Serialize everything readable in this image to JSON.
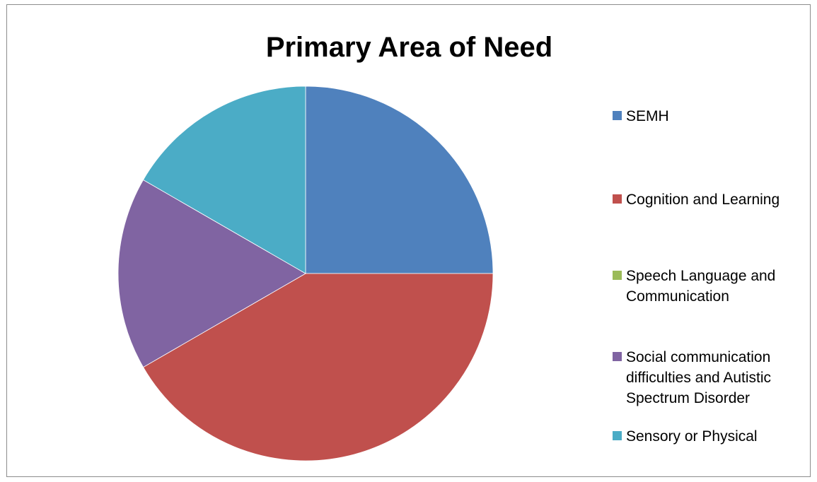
{
  "chart_data": {
    "type": "pie",
    "title": "Primary Area of Need",
    "categories": [
      "SEMH",
      "Cognition and Learning",
      "Speech Language and Communication",
      "Social communication difficulties and Autistic Spectrum Disorder",
      "Sensory or Physical"
    ],
    "values": [
      25,
      41.67,
      0,
      16.67,
      16.67
    ],
    "colors": [
      "#4F81BD",
      "#C0504D",
      "#9BBB59",
      "#8064A2",
      "#4BACC6"
    ],
    "legend_position": "right",
    "start_angle": "12 o'clock",
    "direction": "clockwise"
  },
  "legend_display": [
    "SEMH",
    "Cognition and Learning",
    "Speech Language and\nCommunication",
    "Social communication\ndifficulties and Autistic\nSpectrum Disorder",
    "Sensory or Physical"
  ]
}
